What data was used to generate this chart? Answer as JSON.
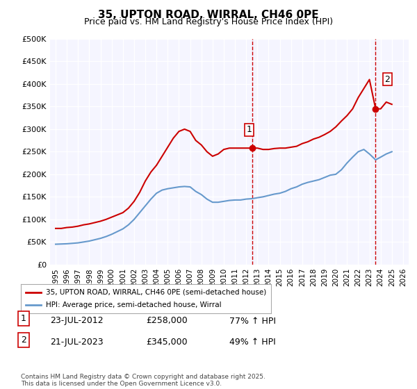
{
  "title": "35, UPTON ROAD, WIRRAL, CH46 0PE",
  "subtitle": "Price paid vs. HM Land Registry's House Price Index (HPI)",
  "legend_line1": "35, UPTON ROAD, WIRRAL, CH46 0PE (semi-detached house)",
  "legend_line2": "HPI: Average price, semi-detached house, Wirral",
  "footer": "Contains HM Land Registry data © Crown copyright and database right 2025.\nThis data is licensed under the Open Government Licence v3.0.",
  "annotation1": {
    "num": "1",
    "date": "23-JUL-2012",
    "price": "£258,000",
    "hpi": "77% ↑ HPI"
  },
  "annotation2": {
    "num": "2",
    "date": "21-JUL-2023",
    "price": "£345,000",
    "hpi": "49% ↑ HPI"
  },
  "sale1_year": 2012.55,
  "sale1_price": 258000,
  "sale2_year": 2023.55,
  "sale2_price": 345000,
  "ylim": [
    0,
    500000
  ],
  "xlim": [
    1994.5,
    2026.5
  ],
  "yticks": [
    0,
    50000,
    100000,
    150000,
    200000,
    250000,
    300000,
    350000,
    400000,
    450000,
    500000
  ],
  "ytick_labels": [
    "£0",
    "£50K",
    "£100K",
    "£150K",
    "£200K",
    "£250K",
    "£300K",
    "£350K",
    "£400K",
    "£450K",
    "£500K"
  ],
  "xticks": [
    1995,
    1996,
    1997,
    1998,
    1999,
    2000,
    2001,
    2002,
    2003,
    2004,
    2005,
    2006,
    2007,
    2008,
    2009,
    2010,
    2011,
    2012,
    2013,
    2014,
    2015,
    2016,
    2017,
    2018,
    2019,
    2020,
    2021,
    2022,
    2023,
    2024,
    2025,
    2026
  ],
  "red_color": "#cc0000",
  "blue_color": "#6699cc",
  "vline_color": "#cc0000",
  "background_color": "#e8eef8",
  "plot_bg": "#f5f5ff",
  "red_line_data": {
    "years": [
      1995.0,
      1995.5,
      1996.0,
      1996.5,
      1997.0,
      1997.5,
      1998.0,
      1998.5,
      1999.0,
      1999.5,
      2000.0,
      2000.5,
      2001.0,
      2001.5,
      2002.0,
      2002.5,
      2003.0,
      2003.5,
      2004.0,
      2004.5,
      2005.0,
      2005.5,
      2006.0,
      2006.5,
      2007.0,
      2007.5,
      2008.0,
      2008.5,
      2009.0,
      2009.5,
      2010.0,
      2010.5,
      2011.0,
      2011.5,
      2012.0,
      2012.55,
      2013.0,
      2013.5,
      2014.0,
      2014.5,
      2015.0,
      2015.5,
      2016.0,
      2016.5,
      2017.0,
      2017.5,
      2018.0,
      2018.5,
      2019.0,
      2019.5,
      2020.0,
      2020.5,
      2021.0,
      2021.5,
      2022.0,
      2022.5,
      2023.0,
      2023.55,
      2024.0,
      2024.5,
      2025.0
    ],
    "prices": [
      80000,
      80000,
      82000,
      83000,
      85000,
      88000,
      90000,
      93000,
      96000,
      100000,
      105000,
      110000,
      115000,
      125000,
      140000,
      160000,
      185000,
      205000,
      220000,
      240000,
      260000,
      280000,
      295000,
      300000,
      295000,
      275000,
      265000,
      250000,
      240000,
      245000,
      255000,
      258000,
      258000,
      258000,
      258000,
      258000,
      258000,
      255000,
      255000,
      257000,
      258000,
      258000,
      260000,
      262000,
      268000,
      272000,
      278000,
      282000,
      288000,
      295000,
      305000,
      318000,
      330000,
      345000,
      370000,
      390000,
      410000,
      345000,
      345000,
      360000,
      355000
    ]
  },
  "blue_line_data": {
    "years": [
      1995.0,
      1995.5,
      1996.0,
      1996.5,
      1997.0,
      1997.5,
      1998.0,
      1998.5,
      1999.0,
      1999.5,
      2000.0,
      2000.5,
      2001.0,
      2001.5,
      2002.0,
      2002.5,
      2003.0,
      2003.5,
      2004.0,
      2004.5,
      2005.0,
      2005.5,
      2006.0,
      2006.5,
      2007.0,
      2007.5,
      2008.0,
      2008.5,
      2009.0,
      2009.5,
      2010.0,
      2010.5,
      2011.0,
      2011.5,
      2012.0,
      2012.55,
      2013.0,
      2013.5,
      2014.0,
      2014.5,
      2015.0,
      2015.5,
      2016.0,
      2016.5,
      2017.0,
      2017.5,
      2018.0,
      2018.5,
      2019.0,
      2019.5,
      2020.0,
      2020.5,
      2021.0,
      2021.5,
      2022.0,
      2022.5,
      2023.0,
      2023.55,
      2024.0,
      2024.5,
      2025.0
    ],
    "prices": [
      45000,
      45500,
      46000,
      47000,
      48000,
      50000,
      52000,
      55000,
      58000,
      62000,
      67000,
      73000,
      79000,
      88000,
      100000,
      115000,
      130000,
      145000,
      158000,
      165000,
      168000,
      170000,
      172000,
      173000,
      172000,
      162000,
      155000,
      145000,
      138000,
      138000,
      140000,
      142000,
      143000,
      143000,
      145000,
      146000,
      148000,
      150000,
      153000,
      156000,
      158000,
      162000,
      168000,
      172000,
      178000,
      182000,
      185000,
      188000,
      193000,
      198000,
      200000,
      210000,
      225000,
      238000,
      250000,
      255000,
      245000,
      232000,
      238000,
      245000,
      250000
    ]
  }
}
